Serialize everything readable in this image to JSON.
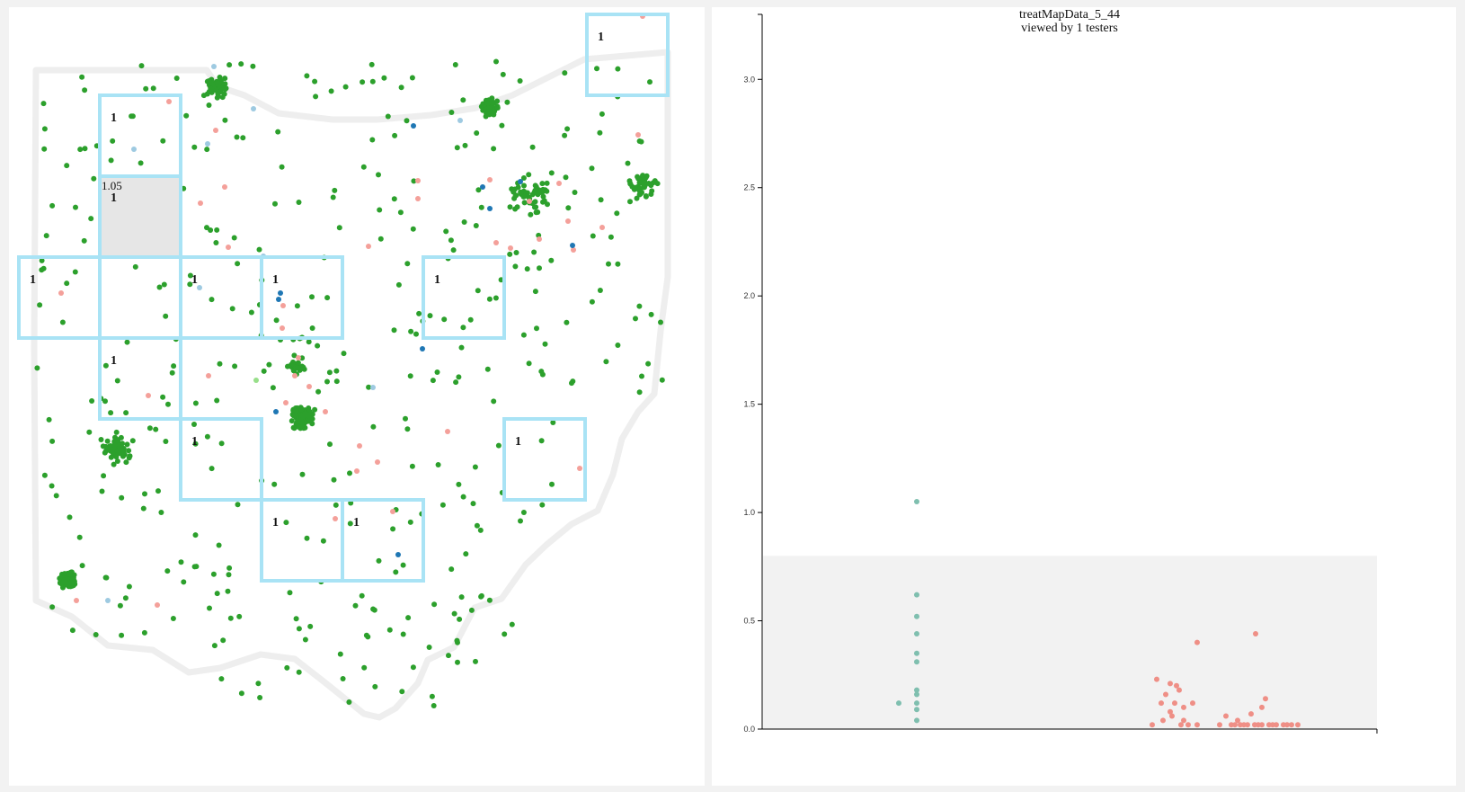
{
  "colors": {
    "state_outline": "#eeeeee",
    "grid_border": "#a9e3f5",
    "selected_fill": "#e6e6e6",
    "site_default": "#2ca02c",
    "site_light_green": "#98df8a",
    "site_light_blue": "#9ecae1",
    "site_dark_blue": "#1f77b4",
    "site_pink": "#f4a09a",
    "group_a": "#7fbfaf",
    "group_b": "#ef8f86",
    "threshold_band": "#f2f2f2"
  },
  "map": {
    "selected_value_label": "1.05",
    "grid_cells": [
      {
        "label": "1",
        "selected": false
      },
      {
        "label": "1",
        "selected": false
      },
      {
        "label": "1",
        "selected": true
      },
      {
        "label": "1",
        "selected": false
      },
      {
        "label": "",
        "selected": false
      },
      {
        "label": "1",
        "selected": false
      },
      {
        "label": "1",
        "selected": false
      },
      {
        "label": "1",
        "selected": false
      },
      {
        "label": "1",
        "selected": false
      },
      {
        "label": "1",
        "selected": false
      },
      {
        "label": "1",
        "selected": false
      },
      {
        "label": "1",
        "selected": false
      },
      {
        "label": "1",
        "selected": false
      },
      {
        "label": "1",
        "selected": false
      }
    ]
  },
  "chart_data": {
    "type": "scatter",
    "title": "treatMapData_5_44",
    "subtitle": "viewed by 1 testers",
    "ylim": [
      0,
      3.3
    ],
    "y_ticks": [
      "0.0",
      "0.5",
      "1.0",
      "1.5",
      "2.0",
      "2.5",
      "3.0"
    ],
    "threshold_band": [
      0,
      0.8
    ],
    "grid": false,
    "series": [
      {
        "values": [
          1.05,
          0.62,
          0.52,
          0.44,
          0.35,
          0.31,
          0.18,
          0.16,
          0.12,
          0.12,
          0.09,
          0.04
        ]
      },
      {
        "values": [
          0.4,
          0.23,
          0.21,
          0.2,
          0.18,
          0.16,
          0.12,
          0.12,
          0.12,
          0.1,
          0.08,
          0.06,
          0.04,
          0.04,
          0.02,
          0.02,
          0.02,
          0.02,
          0.44,
          0.14,
          0.1,
          0.07,
          0.06,
          0.04,
          0.02,
          0.02,
          0.02,
          0.02,
          0.02,
          0.02,
          0.02,
          0.02,
          0.02,
          0.02,
          0.02,
          0.02,
          0.02,
          0.02,
          0.02,
          0.02
        ]
      }
    ]
  }
}
